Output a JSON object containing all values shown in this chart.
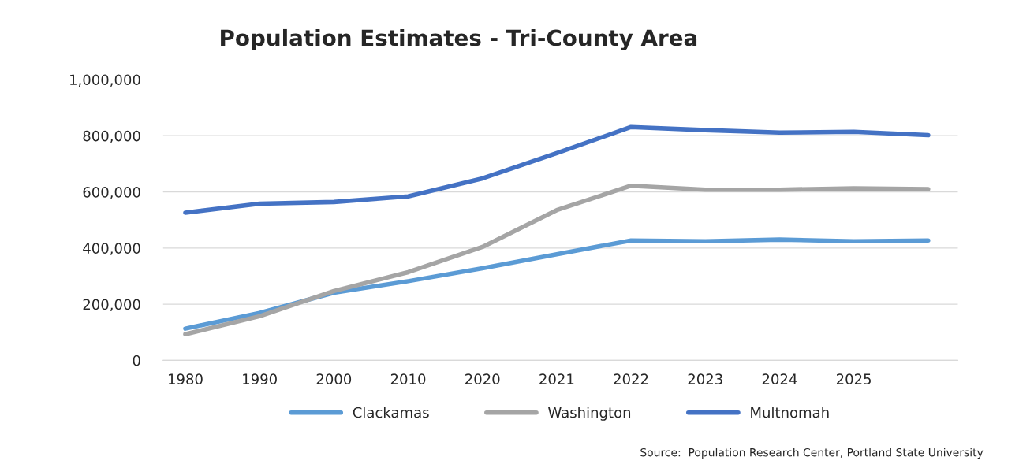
{
  "chart_data": {
    "type": "line",
    "title": "Population Estimates - Tri-County Area",
    "categories": [
      "1980",
      "1990",
      "2000",
      "2010",
      "2020",
      "2021",
      "2022",
      "2023",
      "2024",
      "2025",
      null
    ],
    "series": [
      {
        "name": "Clackamas",
        "color": "#5b9bd5",
        "values": [
          113000,
          169000,
          241000,
          282000,
          328000,
          378000,
          427000,
          424000,
          430000,
          424000,
          427000
        ]
      },
      {
        "name": "Washington",
        "color": "#a5a5a5",
        "values": [
          93000,
          157000,
          247000,
          314000,
          404000,
          535000,
          622000,
          608000,
          608000,
          613000,
          610000
        ]
      },
      {
        "name": "Multnomah",
        "color": "#4472c4",
        "values": [
          526000,
          558000,
          564000,
          584000,
          648000,
          738000,
          831000,
          820000,
          811000,
          814000,
          802000
        ]
      }
    ],
    "ylim": [
      0,
      1000000
    ],
    "yticks": [
      {
        "value": 0,
        "label": "0"
      },
      {
        "value": 200000,
        "label": "200,000"
      },
      {
        "value": 400000,
        "label": "400,000"
      },
      {
        "value": 600000,
        "label": "600,000"
      },
      {
        "value": 800000,
        "label": "800,000"
      },
      {
        "value": 1000000,
        "label": "1,000,000"
      }
    ],
    "grid": "y",
    "legend": "bottom",
    "marker": "none",
    "line_style": "solid",
    "annotations": [
      "Source:  Population Research Center, Portland State University"
    ]
  }
}
